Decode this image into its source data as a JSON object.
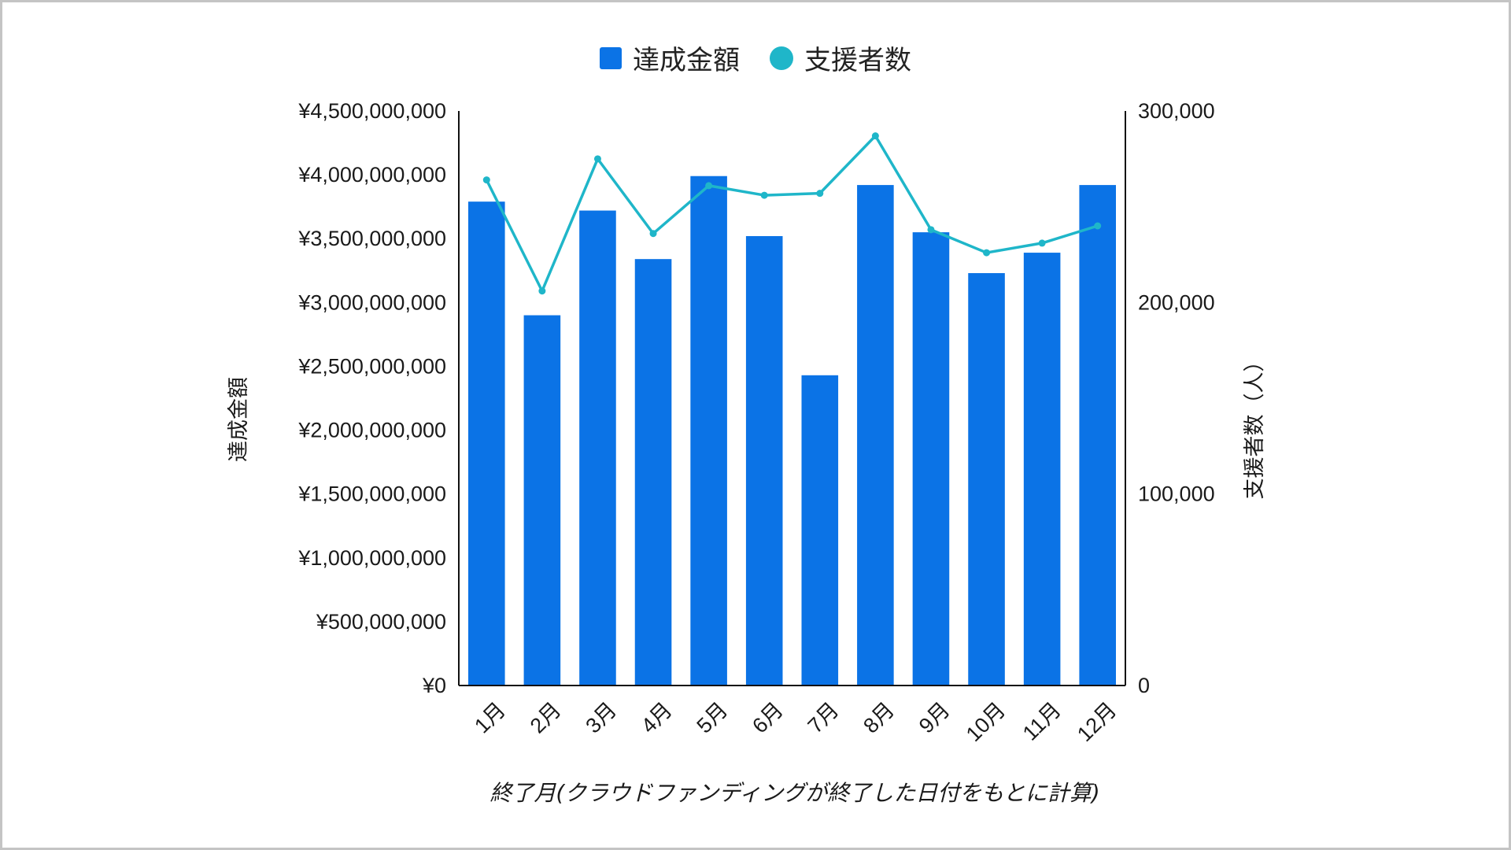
{
  "chart_data": {
    "type": "bar",
    "categories": [
      "1月",
      "2月",
      "3月",
      "4月",
      "5月",
      "6月",
      "7月",
      "8月",
      "9月",
      "10月",
      "11月",
      "12月"
    ],
    "series": [
      {
        "name": "達成金額",
        "type": "bar",
        "axis": "left",
        "color": "#0b73e6",
        "values": [
          3790000000,
          2900000000,
          3720000000,
          3340000000,
          3990000000,
          3520000000,
          2430000000,
          3920000000,
          3550000000,
          3230000000,
          3390000000,
          3920000000
        ]
      },
      {
        "name": "支援者数",
        "type": "line",
        "axis": "right",
        "color": "#1fb6c9",
        "values": [
          264000,
          206000,
          275000,
          236000,
          261000,
          256000,
          257000,
          287000,
          238000,
          226000,
          231000,
          240000
        ]
      }
    ],
    "y_left": {
      "label": "達成金額",
      "ylim": [
        0,
        4500000000
      ],
      "ticks": [
        "¥0",
        "¥500,000,000",
        "¥1,000,000,000",
        "¥1,500,000,000",
        "¥2,000,000,000",
        "¥2,500,000,000",
        "¥3,000,000,000",
        "¥3,500,000,000",
        "¥4,000,000,000",
        "¥4,500,000,000"
      ]
    },
    "y_right": {
      "label": "支援者数（人）",
      "ylim": [
        0,
        300000
      ],
      "ticks": [
        "0",
        "100,000",
        "200,000",
        "300,000"
      ]
    },
    "xlabel": "終了月(クラウドファンディングが終了した日付をもとに計算)",
    "legend": "top-center",
    "grid": false
  }
}
